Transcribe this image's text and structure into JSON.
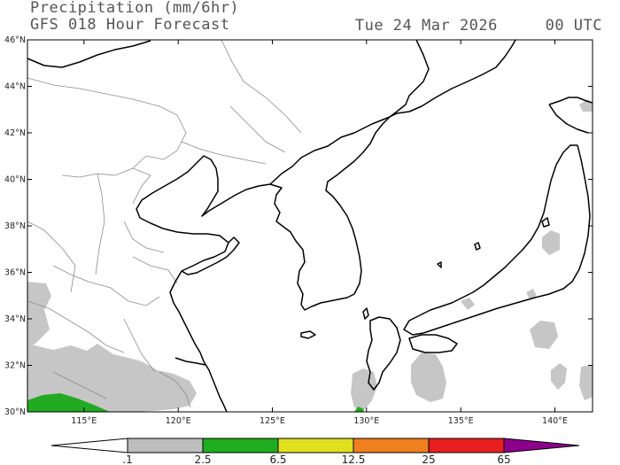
{
  "header": {
    "title_line1": "Precipitation (mm/6hr)",
    "title_line2": "GFS 018 Hour Forecast",
    "date": "Tue 24 Mar 2026",
    "time": "00 UTC"
  },
  "map": {
    "lon_range": [
      112,
      142
    ],
    "lat_range": [
      30,
      46
    ],
    "lat_labels": [
      "46°N",
      "44°N",
      "42°N",
      "40°N",
      "38°N",
      "36°N",
      "34°N",
      "32°N",
      "30°N"
    ],
    "lon_labels": [
      "115°E",
      "120°E",
      "125°E",
      "130°E",
      "135°E",
      "140°E"
    ]
  },
  "colorbar": {
    "labels": [
      ".1",
      "2.5",
      "6.5",
      "12.5",
      "25",
      "65"
    ],
    "colors": {
      "under": "#ffffff",
      "c1": "#bebebe",
      "c2": "#1fae1f",
      "c3": "#e0e01f",
      "c4": "#f07f1f",
      "c5": "#e81f1f",
      "over": "#8c008c"
    }
  },
  "precip_colors": {
    "light": "#c6c6c6",
    "moderate": "#22aa22"
  }
}
